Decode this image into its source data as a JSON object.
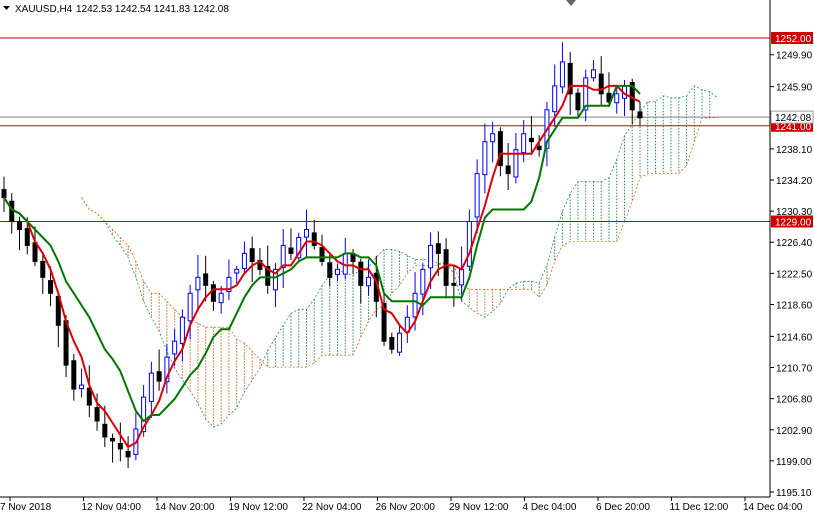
{
  "header": {
    "symbol": "XAUUSD,H4",
    "ohlc": "1242.53 1242.54 1241.83 1242.08"
  },
  "colors": {
    "up_candle": "#0000ff",
    "down_candle": "#000000",
    "tenkan": "#dd0000",
    "kijun": "#007700",
    "cloud_bull": "#2e8b57",
    "cloud_bear": "#d2691e",
    "level_line": "#cc0000",
    "current_price_line": "#808080"
  },
  "chart_data": {
    "type": "candlestick",
    "title": "",
    "symbol": "XAUUSD",
    "timeframe": "H4",
    "ylim": [
      1195.1,
      1253.0
    ],
    "y_ticks": [
      "1249.90",
      "1245.90",
      "1238.10",
      "1234.20",
      "1230.30",
      "1226.40",
      "1222.50",
      "1218.60",
      "1214.60",
      "1210.70",
      "1206.80",
      "1202.90",
      "1199.00",
      "1195.10"
    ],
    "x_ticks": [
      "7 Nov 2018",
      "12 Nov 04:00",
      "14 Nov 20:00",
      "19 Nov 12:00",
      "22 Nov 04:00",
      "26 Nov 20:00",
      "29 Nov 12:00",
      "4 Dec 04:00",
      "6 Dec 20:00",
      "11 Dec 12:00",
      "14 Dec 04:00"
    ],
    "levels": [
      {
        "label": "1252.00",
        "value": 1252.0
      },
      {
        "label": "1241.00",
        "value": 1241.0
      },
      {
        "label": "1229.00",
        "value": 1229.0
      }
    ],
    "current_price": {
      "label": "1242.08",
      "value": 1242.08
    },
    "close_series": [
      1232.0,
      1229.0,
      1228.0,
      1226.0,
      1224.0,
      1222.0,
      1220.0,
      1216.0,
      1211.0,
      1208.0,
      1208.5,
      1206.0,
      1204.0,
      1202.0,
      1201.5,
      1200.5,
      1199.5,
      1203.0,
      1207.0,
      1210.0,
      1209.0,
      1212.0,
      1214.0,
      1217.0,
      1220.0,
      1222.0,
      1221.0,
      1219.0,
      1220.0,
      1222.0,
      1223.0,
      1225.0,
      1224.0,
      1223.0,
      1221.0,
      1223.0,
      1226.0,
      1225.0,
      1227.0,
      1228.0,
      1226.0,
      1224.0,
      1222.0,
      1223.0,
      1225.0,
      1224.0,
      1221.0,
      1222.0,
      1219.0,
      1214.0,
      1213.0,
      1215.0,
      1217.0,
      1220.0,
      1223.0,
      1226.0,
      1225.0,
      1221.0,
      1221.0,
      1223.0,
      1229.0,
      1235.0,
      1239.0,
      1240.0,
      1236.0,
      1235.0,
      1238.0,
      1240.0,
      1239.0,
      1238.0,
      1243.0,
      1246.0,
      1249.0,
      1245.0,
      1243.0,
      1247.0,
      1248.0,
      1245.0,
      1244.0,
      1245.0,
      1246.0,
      1243.0,
      1242.0
    ],
    "cloud": {
      "bear_zones": [
        {
          "from": "14 Nov 20:00",
          "to": "19 Nov 12:00"
        },
        {
          "from": "29 Nov 12:00",
          "to": "4 Dec 04:00"
        }
      ],
      "bull_zones": [
        {
          "from": "22 Nov 04:00",
          "to": "29 Nov 12:00"
        },
        {
          "from": "6 Dec 20:00",
          "to": "14 Dec 04:00"
        }
      ]
    }
  }
}
